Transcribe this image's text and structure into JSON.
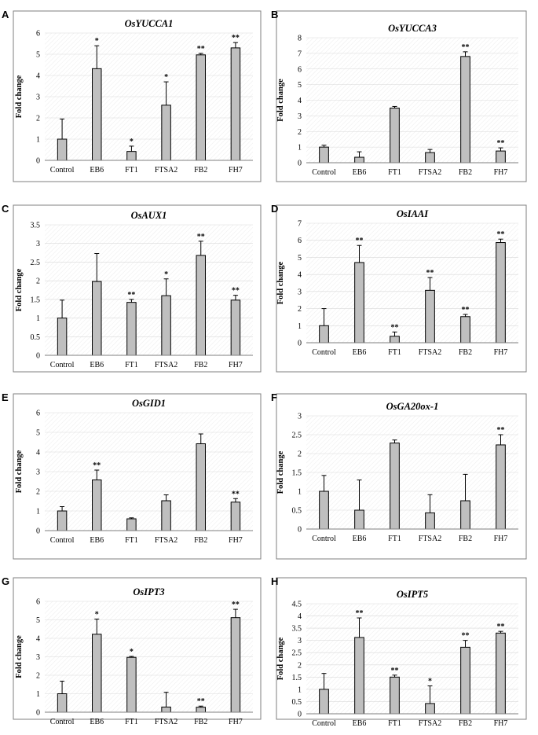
{
  "chart_data": [
    {
      "type": "bar",
      "panel": "A",
      "title": "OsYUCCA1",
      "ylabel": "Fold change",
      "categories": [
        "Control",
        "EB6",
        "FT1",
        "FTSA2",
        "FB2",
        "FH7"
      ],
      "values": [
        1.0,
        4.32,
        0.42,
        2.6,
        4.97,
        5.3
      ],
      "errors": [
        0.95,
        1.08,
        0.25,
        1.1,
        0.07,
        0.25
      ],
      "significance": [
        "",
        "*",
        "*",
        "*",
        "**",
        "**"
      ],
      "ylim": [
        0,
        6
      ],
      "yticks": [
        0,
        1,
        2,
        3,
        4,
        5,
        6
      ],
      "grid": true
    },
    {
      "type": "bar",
      "panel": "B",
      "title": "OsYUCCA3",
      "ylabel": "Fold change",
      "categories": [
        "Control",
        "EB6",
        "FT1",
        "FTSA2",
        "FB2",
        "FH7"
      ],
      "values": [
        1.0,
        0.35,
        3.5,
        0.65,
        6.8,
        0.75
      ],
      "errors": [
        0.12,
        0.35,
        0.1,
        0.2,
        0.3,
        0.2
      ],
      "significance": [
        "",
        "",
        "",
        "",
        "**",
        "**"
      ],
      "ylim": [
        0,
        8
      ],
      "yticks": [
        0,
        1,
        2,
        3,
        4,
        5,
        6,
        7,
        8
      ],
      "grid": true
    },
    {
      "type": "bar",
      "panel": "C",
      "title": "OsAUX1",
      "ylabel": "Fold change",
      "categories": [
        "Control",
        "EB6",
        "FT1",
        "FTSA2",
        "FB2",
        "FH7"
      ],
      "values": [
        1.0,
        1.98,
        1.42,
        1.6,
        2.68,
        1.48
      ],
      "errors": [
        0.48,
        0.75,
        0.08,
        0.45,
        0.38,
        0.13
      ],
      "significance": [
        "",
        "",
        "**",
        "*",
        "**",
        "**"
      ],
      "ylim": [
        0,
        3.5
      ],
      "yticks": [
        0,
        0.5,
        1,
        1.5,
        2,
        2.5,
        3,
        3.5
      ],
      "grid": true
    },
    {
      "type": "bar",
      "panel": "D",
      "title": "OsIAAI",
      "ylabel": "Fold change",
      "categories": [
        "Control",
        "EB6",
        "FT1",
        "FTSA2",
        "FB2",
        "FH7"
      ],
      "values": [
        1.0,
        4.7,
        0.38,
        3.07,
        1.53,
        5.87
      ],
      "errors": [
        1.0,
        1.0,
        0.25,
        0.75,
        0.13,
        0.2
      ],
      "significance": [
        "",
        "**",
        "**",
        "**",
        "**",
        "**"
      ],
      "ylim": [
        0,
        7
      ],
      "yticks": [
        0,
        1,
        2,
        3,
        4,
        5,
        6,
        7
      ],
      "grid": true
    },
    {
      "type": "bar",
      "panel": "E",
      "title": "OsGID1",
      "ylabel": "Fold change",
      "categories": [
        "Control",
        "EB6",
        "FT1",
        "FTSA2",
        "FB2",
        "FH7"
      ],
      "values": [
        1.0,
        2.58,
        0.6,
        1.52,
        4.42,
        1.45
      ],
      "errors": [
        0.22,
        0.5,
        0.05,
        0.3,
        0.5,
        0.18
      ],
      "significance": [
        "",
        "**",
        "",
        "",
        "",
        "**"
      ],
      "ylim": [
        0,
        6
      ],
      "yticks": [
        0,
        1,
        2,
        3,
        4,
        5,
        6
      ],
      "grid": true
    },
    {
      "type": "bar",
      "panel": "F",
      "title": "OsGA20ox-1",
      "ylabel": "Fold change",
      "categories": [
        "Control",
        "EB6",
        "FT1",
        "FTSA2",
        "FB2",
        "FH7"
      ],
      "values": [
        1.0,
        0.5,
        2.28,
        0.43,
        0.75,
        2.23
      ],
      "errors": [
        0.42,
        0.8,
        0.08,
        0.48,
        0.7,
        0.27
      ],
      "significance": [
        "",
        "",
        "",
        "",
        "",
        "**"
      ],
      "ylim": [
        0,
        3
      ],
      "yticks": [
        0,
        0.5,
        1,
        1.5,
        2,
        2.5,
        3
      ],
      "grid": true
    },
    {
      "type": "bar",
      "panel": "G",
      "title": "OsIPT3",
      "ylabel": "Fold change",
      "categories": [
        "Control",
        "EB6",
        "FT1",
        "FTSA2",
        "FB2",
        "FH7"
      ],
      "values": [
        1.0,
        4.22,
        2.97,
        0.28,
        0.27,
        5.12
      ],
      "errors": [
        0.68,
        0.82,
        0.05,
        0.8,
        0.06,
        0.45
      ],
      "significance": [
        "",
        "*",
        "*",
        "",
        "**",
        "**"
      ],
      "ylim": [
        0,
        6
      ],
      "yticks": [
        0,
        1,
        2,
        3,
        4,
        5,
        6
      ],
      "grid": true
    },
    {
      "type": "bar",
      "panel": "H",
      "title": "OsIPT5",
      "ylabel": "Fold change",
      "categories": [
        "Control",
        "EB6",
        "FT1",
        "FTSA2",
        "FB2",
        "FH7"
      ],
      "values": [
        1.0,
        3.12,
        1.5,
        0.42,
        2.72,
        3.3
      ],
      "errors": [
        0.65,
        0.8,
        0.08,
        0.72,
        0.28,
        0.07
      ],
      "significance": [
        "",
        "**",
        "**",
        "*",
        "**",
        "**"
      ],
      "ylim": [
        0,
        4.5
      ],
      "yticks": [
        0,
        0.5,
        1,
        1.5,
        2,
        2.5,
        3,
        3.5,
        4,
        4.5
      ],
      "grid": true
    }
  ]
}
